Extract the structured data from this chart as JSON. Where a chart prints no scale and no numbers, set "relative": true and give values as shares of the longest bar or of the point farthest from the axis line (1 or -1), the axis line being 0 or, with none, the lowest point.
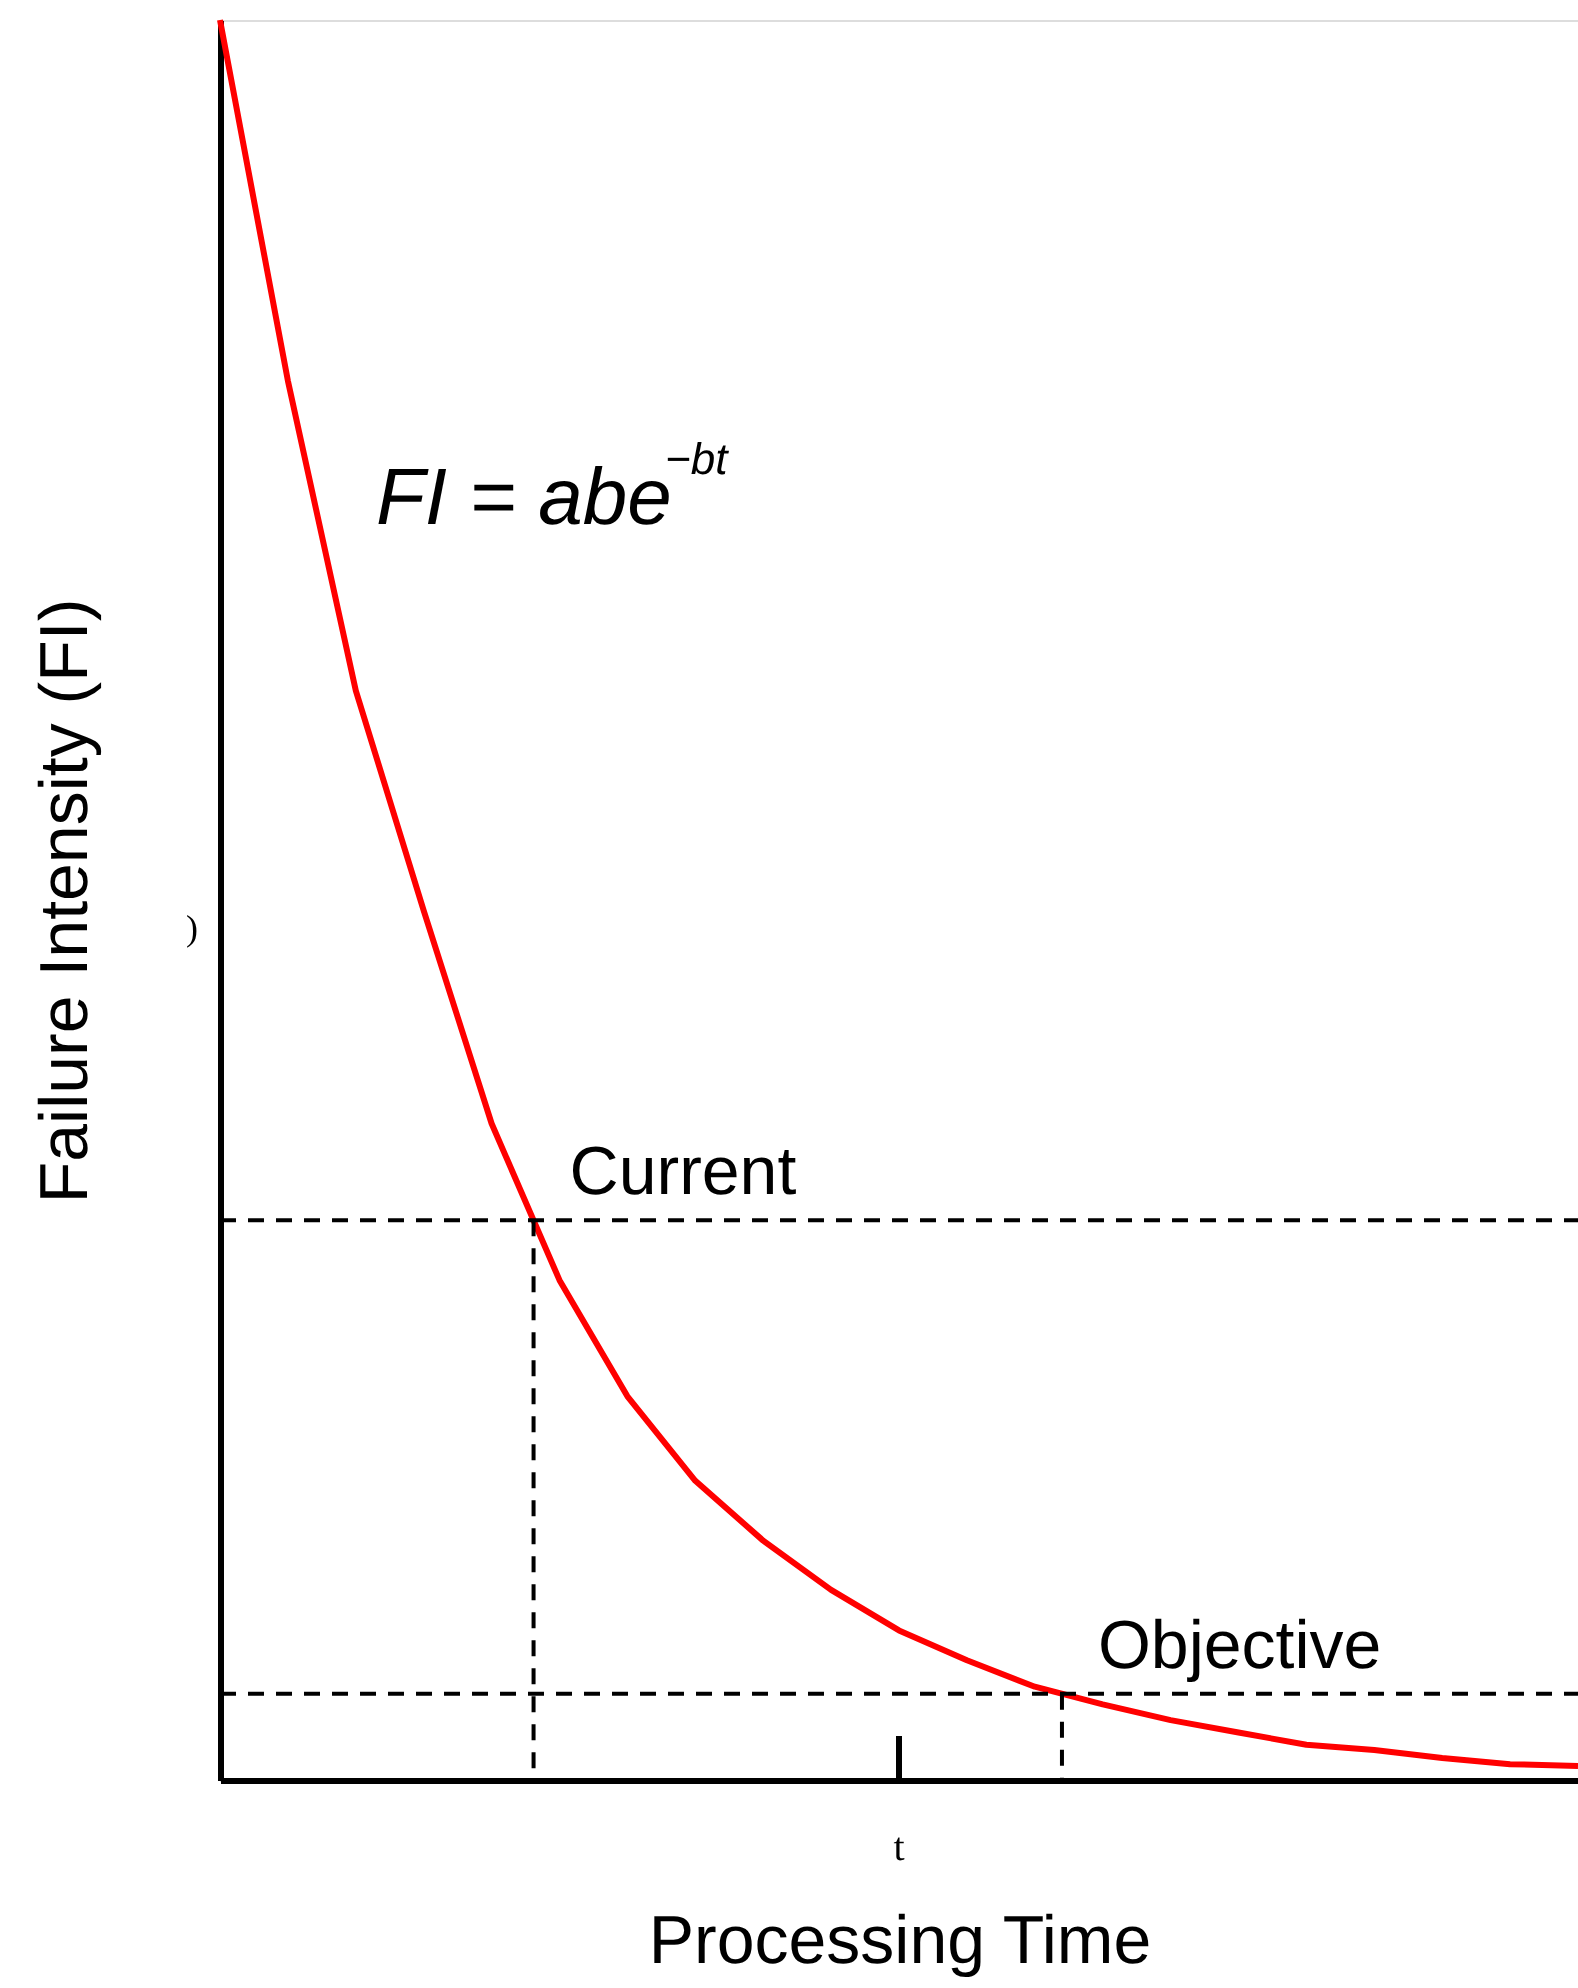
{
  "chart_data": {
    "type": "line",
    "relative": true,
    "xlabel": "Processing Time",
    "ylabel": "Failure Intensity (FI)",
    "categories": [
      null,
      null,
      null,
      null,
      null,
      null,
      null,
      null,
      null,
      null,
      null,
      null,
      null,
      null,
      null,
      null,
      null,
      null,
      null,
      null,
      null
    ],
    "series": [
      {
        "color": "#ff0000",
        "values": [
          1.0,
          0.795,
          0.619,
          0.494,
          0.373,
          0.284,
          0.218,
          0.17,
          0.136,
          0.108,
          0.085,
          0.068,
          0.053,
          0.043,
          0.034,
          0.027,
          0.02,
          0.017,
          0.0125,
          0.009,
          0.008
        ]
      }
    ],
    "ref_lines": [
      {
        "axis": "y",
        "value": 0.318,
        "label": "Current",
        "color": "#000000",
        "line_style": "dashed"
      },
      {
        "axis": "y",
        "value": 0.049,
        "label": "Objective",
        "color": "#000000",
        "line_style": "dashed"
      }
    ],
    "annotations": [
      "FI = abe$^{−bt}$",
      ")",
      "t"
    ],
    "grid": false,
    "marker": "none",
    "line_style": "solid"
  }
}
